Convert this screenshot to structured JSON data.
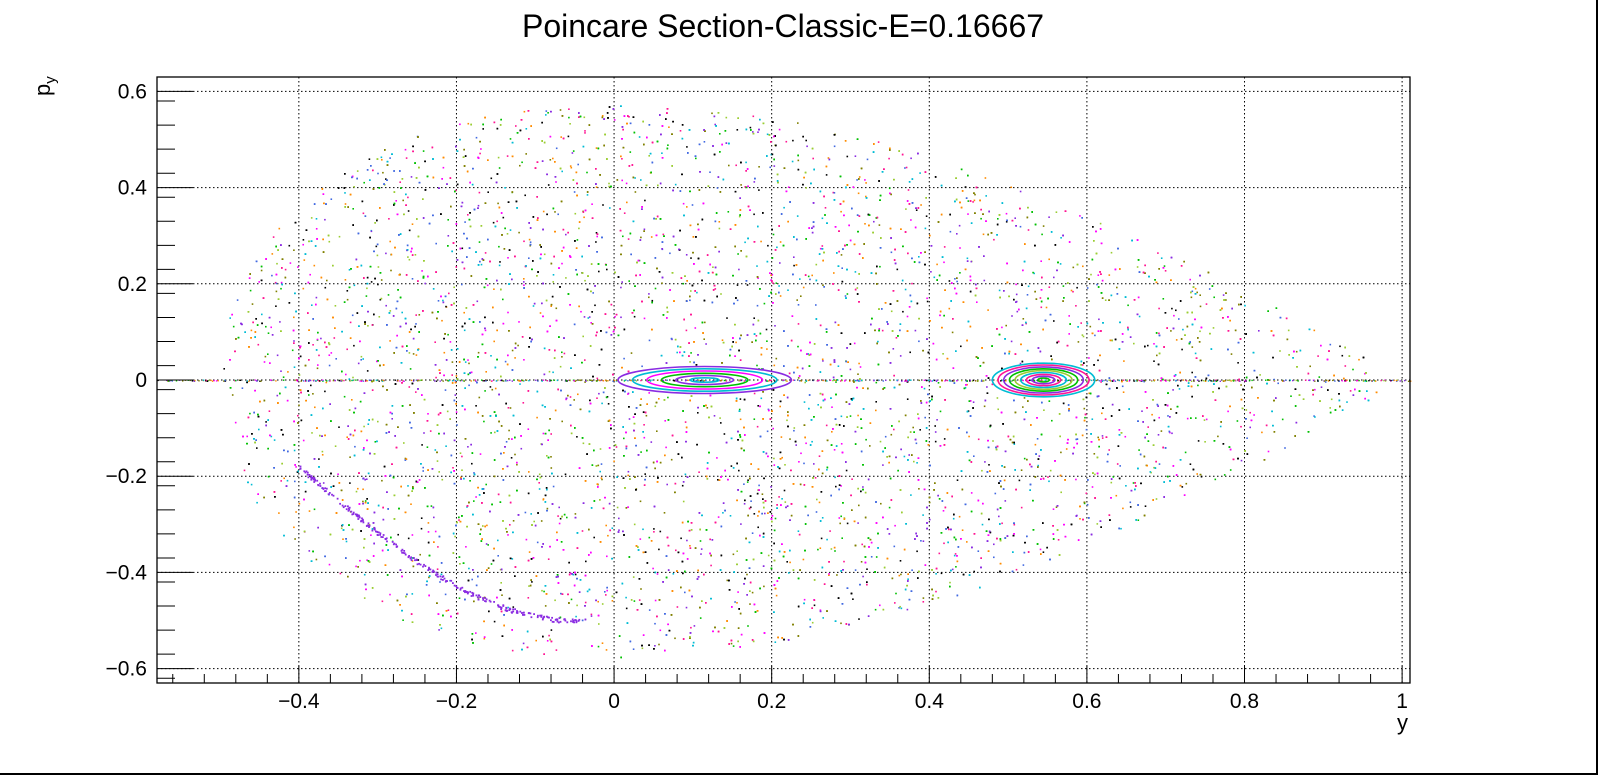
{
  "chart_data": {
    "type": "scatter",
    "title": "Poincare Section-Classic-E=0.16667",
    "xlabel": "y",
    "ylabel_main": "p",
    "ylabel_sub": "y",
    "xlim": [
      -0.58,
      1.01
    ],
    "ylim": [
      -0.63,
      0.63
    ],
    "grid": true,
    "x_ticks": [
      {
        "value": -0.4,
        "label": "−0.4"
      },
      {
        "value": -0.2,
        "label": "−0.2"
      },
      {
        "value": 0,
        "label": "0"
      },
      {
        "value": 0.2,
        "label": "0.2"
      },
      {
        "value": 0.4,
        "label": "0.4"
      },
      {
        "value": 0.6,
        "label": "0.6"
      },
      {
        "value": 0.8,
        "label": "0.8"
      },
      {
        "value": 1,
        "label": "1"
      }
    ],
    "y_ticks": [
      {
        "value": 0.6,
        "label": "0.6"
      },
      {
        "value": 0.4,
        "label": "0.4"
      },
      {
        "value": 0.2,
        "label": "0.2"
      },
      {
        "value": 0,
        "label": "0"
      },
      {
        "value": -0.2,
        "label": "−0.2"
      },
      {
        "value": -0.4,
        "label": "−0.4"
      },
      {
        "value": -0.6,
        "label": "−0.6"
      }
    ],
    "energy": 0.16667,
    "point_colors": [
      "#000000",
      "#ff00ff",
      "#00c000",
      "#00bcd4",
      "#8a2be2",
      "#ff8c00",
      "#4169e1",
      "#9acd32",
      "#ff1493",
      "#808000"
    ],
    "islands": [
      {
        "center": [
          0.115,
          0.0
        ],
        "rx_max": 0.11,
        "ry_max": 0.028,
        "rings": 6,
        "colors": [
          "#ff00ff",
          "#00bcd4",
          "#8a2be2",
          "#00c000"
        ]
      },
      {
        "center": [
          0.545,
          0.0
        ],
        "rx_max": 0.065,
        "ry_max": 0.035,
        "rings": 9,
        "colors": [
          "#9acd32",
          "#00c000",
          "#8a2be2",
          "#ff1493",
          "#00bcd4"
        ]
      }
    ],
    "arc_color": "#8a2be2"
  }
}
